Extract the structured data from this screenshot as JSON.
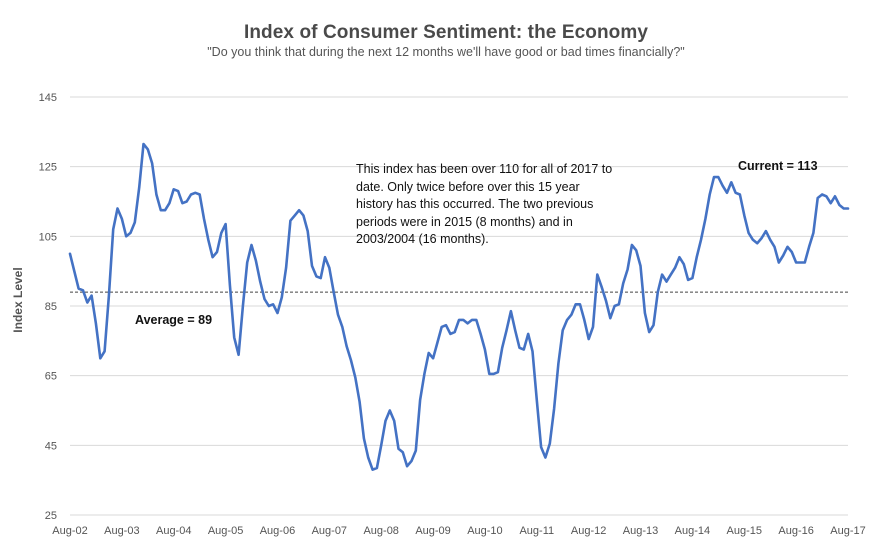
{
  "chart_data": {
    "type": "line",
    "title": "Index of Consumer Sentiment: the Economy",
    "subtitle": "\"Do you think that during the next 12 months we'll have good or bad times financially?\"",
    "xlabel": "",
    "ylabel": "Index Level",
    "ylim": [
      25,
      145
    ],
    "yticks": [
      25,
      45,
      65,
      85,
      105,
      125,
      145
    ],
    "xlim": [
      "Aug-02",
      "Aug-17"
    ],
    "xticks": [
      "Aug-02",
      "Aug-03",
      "Aug-04",
      "Aug-05",
      "Aug-06",
      "Aug-07",
      "Aug-08",
      "Aug-09",
      "Aug-10",
      "Aug-11",
      "Aug-12",
      "Aug-13",
      "Aug-14",
      "Aug-15",
      "Aug-16",
      "Aug-17"
    ],
    "grid": true,
    "colors": {
      "line": "#4472c4",
      "grid": "#d9d9d9",
      "average_line": "#444444",
      "tick_text": "#555555"
    },
    "average_line": {
      "value": 89,
      "style": "dashed"
    },
    "annotations": {
      "note": "This index has been over 110 for all of 2017 to date. Only twice before over this 15 year history has this occurred. The two previous periods were in 2015 (8 months) and in 2003/2004 (16 months).",
      "average": "Average = 89",
      "current": "Current =  113"
    },
    "series": [
      {
        "values_start": "Aug-02",
        "frequency": "monthly",
        "values": [
          100,
          95,
          90,
          89.5,
          86,
          88,
          80,
          70,
          72,
          88,
          107,
          113,
          110,
          105,
          106,
          109,
          119,
          131.5,
          130,
          126,
          117,
          112.5,
          112.5,
          114.5,
          118.5,
          118,
          114.5,
          115,
          117,
          117.5,
          117,
          110,
          104,
          99,
          100.5,
          106,
          108.5,
          91,
          76,
          71,
          85,
          97.5,
          102.5,
          98,
          92,
          87,
          85,
          85.5,
          83,
          87.5,
          96,
          109.5,
          111,
          112.5,
          111,
          106.5,
          96.5,
          93.5,
          93,
          99,
          96,
          89,
          82.5,
          79,
          73.5,
          69.5,
          64.5,
          57.5,
          47,
          41.5,
          38,
          38.5,
          45,
          52,
          55,
          52,
          44,
          43,
          39,
          40.5,
          43.5,
          58,
          65.5,
          71.5,
          70,
          74.5,
          79,
          79.5,
          77,
          77.5,
          81,
          81,
          80,
          81,
          81,
          77,
          72.5,
          65.5,
          65.5,
          66,
          73,
          78,
          83.5,
          78,
          73,
          72.5,
          77,
          72,
          58,
          44.5,
          41.5,
          45.5,
          55.5,
          68.5,
          78,
          81,
          82.5,
          85.5,
          85.5,
          81,
          75.5,
          79,
          94,
          90.5,
          86.5,
          81.5,
          85,
          85.5,
          91.5,
          95.5,
          102.5,
          101,
          96.5,
          83,
          77.5,
          79.5,
          89,
          94,
          92,
          94,
          96,
          99,
          97,
          92.5,
          93,
          99,
          104,
          110,
          117,
          122,
          122,
          119.5,
          117.5,
          120.5,
          117.5,
          117,
          111,
          106,
          104,
          103,
          104.5,
          106.5,
          104,
          102,
          97.5,
          99.5,
          102,
          100.5,
          97.5,
          97.5,
          97.5,
          102,
          106,
          116,
          117,
          116.5,
          114.5,
          116.5,
          114,
          113,
          113
        ]
      }
    ]
  }
}
